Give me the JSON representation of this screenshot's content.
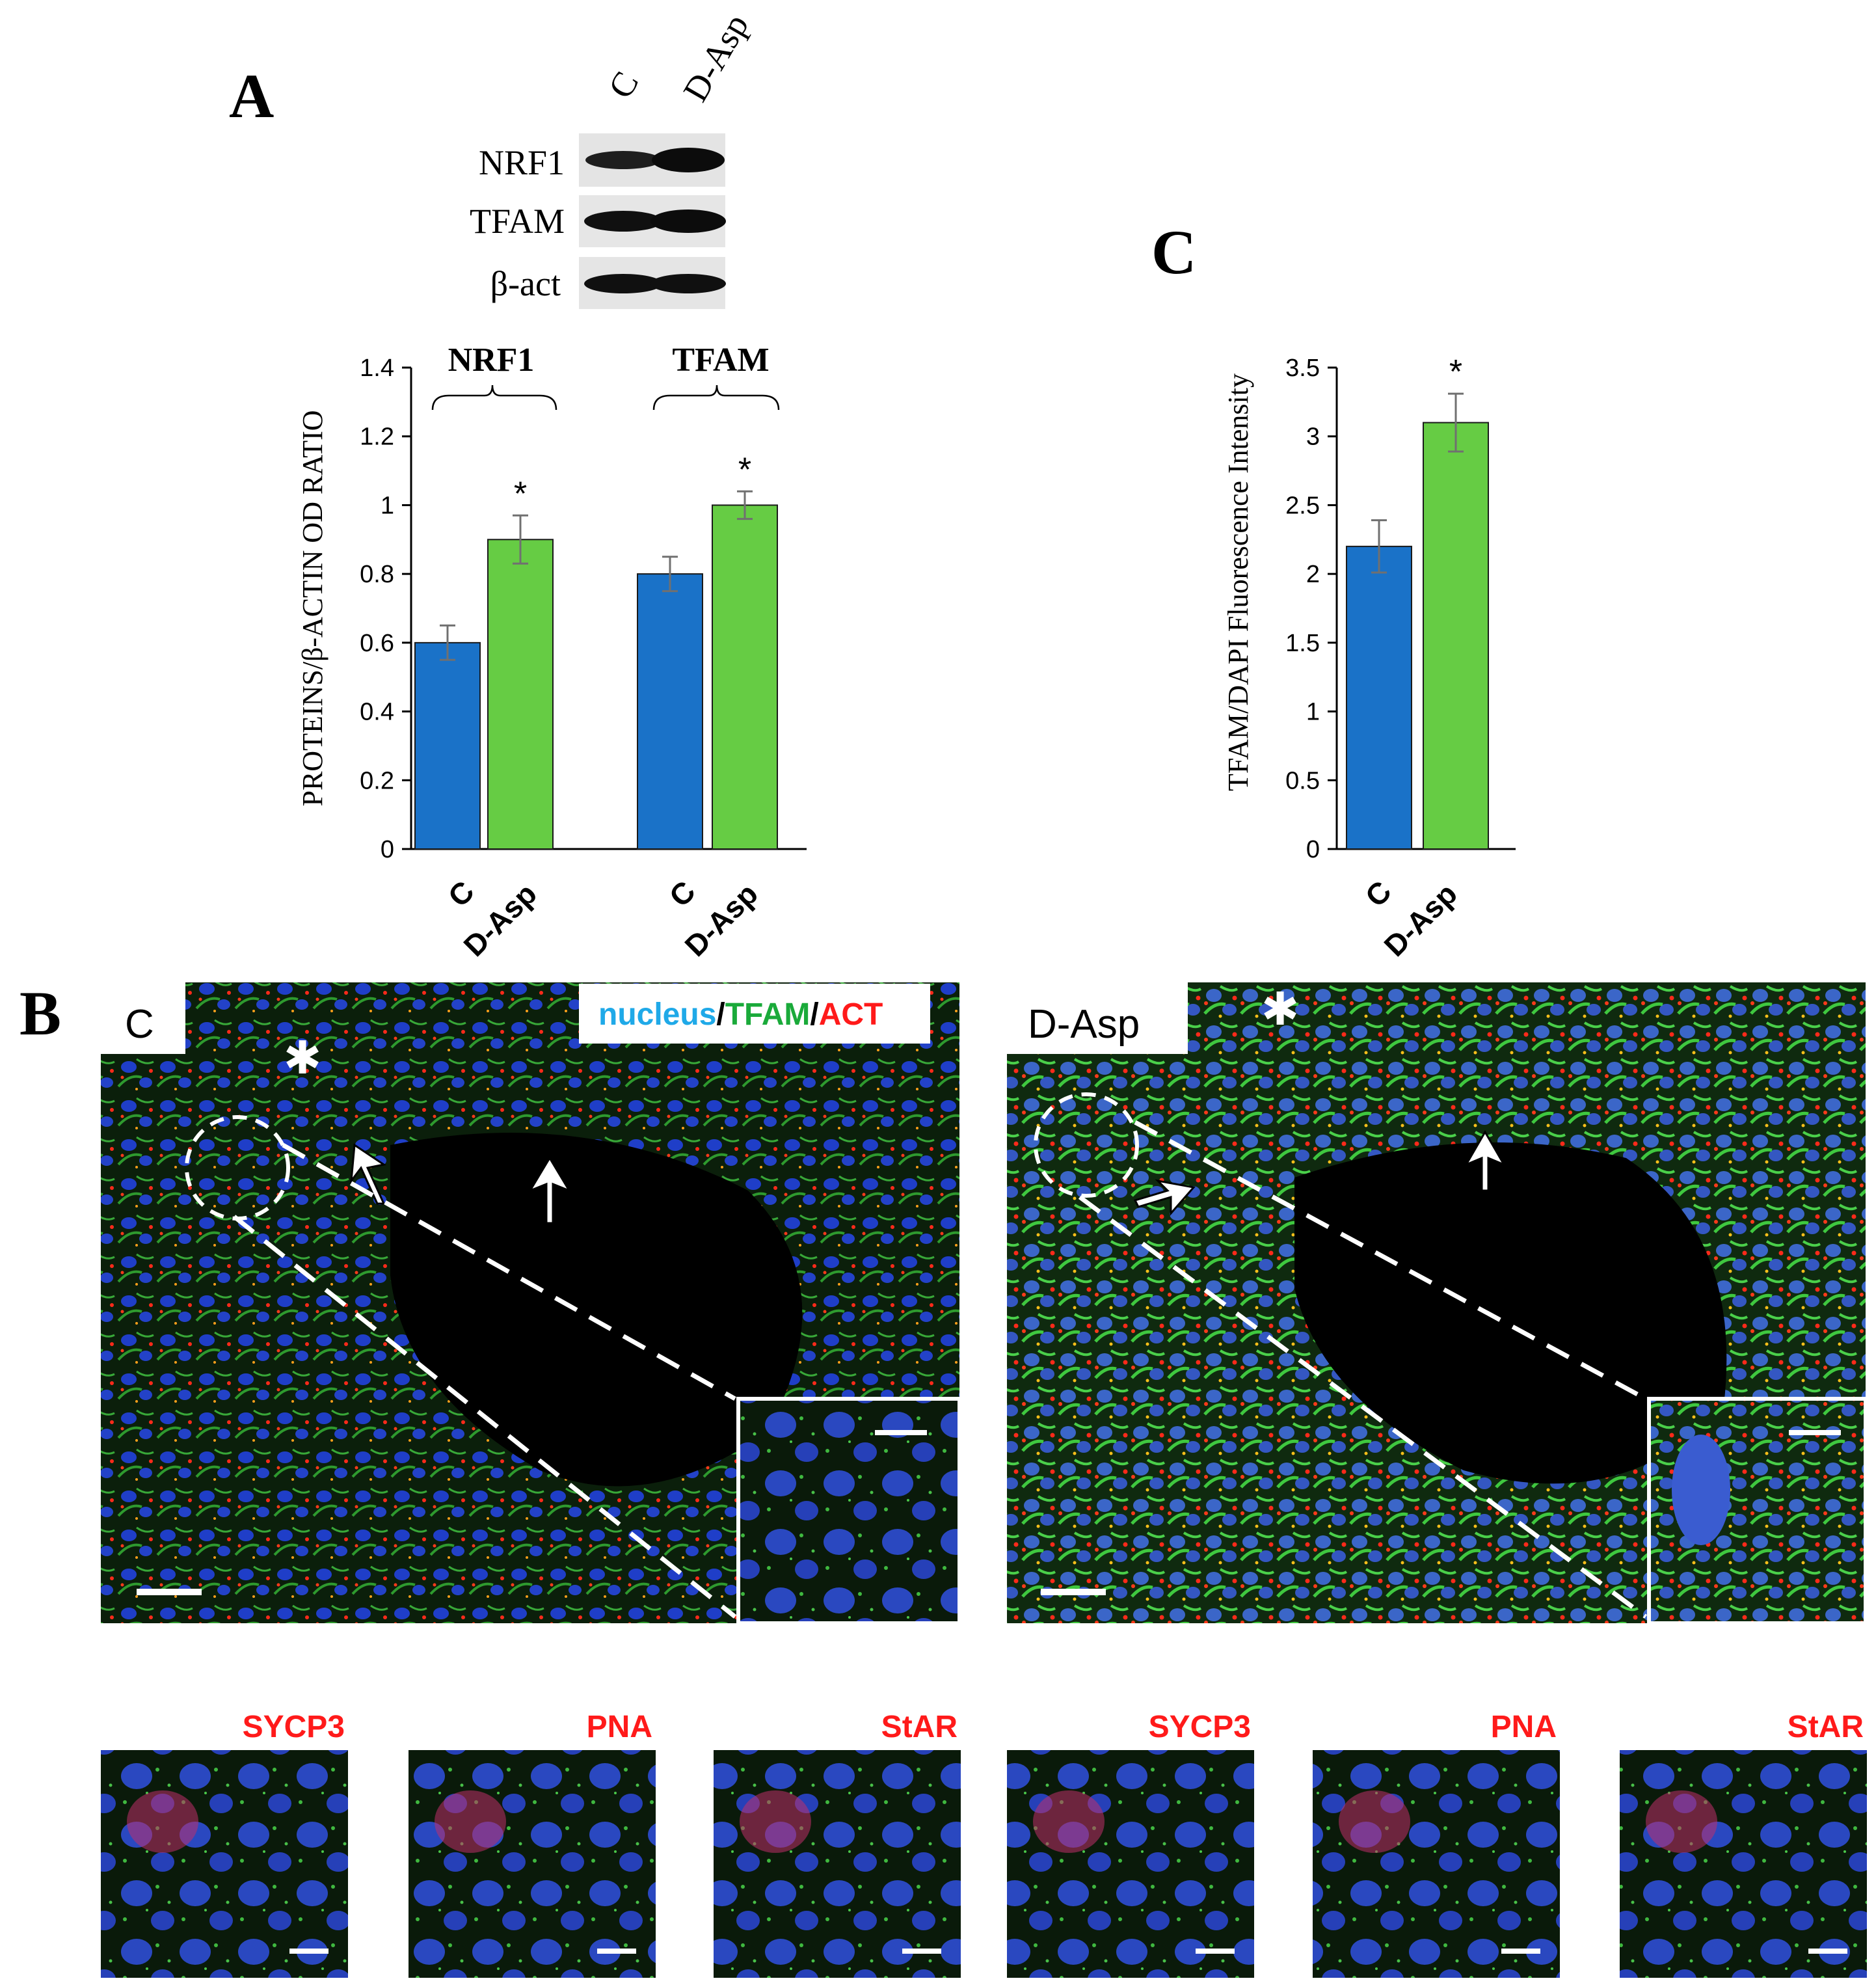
{
  "panels": {
    "a": {
      "letter": "A"
    },
    "b": {
      "letter": "B"
    },
    "c": {
      "letter": "C"
    }
  },
  "blot": {
    "lanes": [
      "C",
      "D-Asp"
    ],
    "rows": [
      "NRF1",
      "TFAM",
      "β-act"
    ]
  },
  "micrographs": {
    "legend": [
      {
        "text": "nucleus",
        "color": "#1fa9e8"
      },
      {
        "text": "/",
        "color": "#000000"
      },
      {
        "text": "TFAM",
        "color": "#1aaa3a"
      },
      {
        "text": "/",
        "color": "#000000"
      },
      {
        "text": "ACT",
        "color": "#ff1a1a"
      }
    ],
    "main_labels": [
      "C",
      "D-Asp"
    ],
    "small_labels": [
      "SYCP3",
      "PNA",
      "StAR",
      "SYCP3",
      "PNA",
      "StAR"
    ]
  },
  "colors": {
    "control": "#1a72c8",
    "treated": "#66cc44",
    "error_bar": "#707070"
  },
  "chart_data": [
    {
      "type": "bar",
      "ylabel": "PROTEINS/β-ACTIN OD RATIO",
      "ylim": [
        0,
        1.4
      ],
      "yticks": [
        "0",
        "0.2",
        "0.4",
        "0.6",
        "0.8",
        "1",
        "1.2",
        "1.4"
      ],
      "groups": [
        {
          "name": "NRF1",
          "categories": [
            "C",
            "D-Asp"
          ],
          "values": [
            0.6,
            0.9
          ],
          "errors": [
            0.05,
            0.07
          ],
          "significance": [
            "",
            "*"
          ]
        },
        {
          "name": "TFAM",
          "categories": [
            "C",
            "D-Asp"
          ],
          "values": [
            0.8,
            1.0
          ],
          "errors": [
            0.05,
            0.04
          ],
          "significance": [
            "",
            "*"
          ]
        }
      ],
      "grid": false
    },
    {
      "type": "bar",
      "ylabel": "TFAM/DAPI  Fluorescence Intensity",
      "ylim": [
        0,
        3.5
      ],
      "yticks": [
        "0",
        "0.5",
        "1",
        "1.5",
        "2",
        "2.5",
        "3",
        "3.5"
      ],
      "categories": [
        "C",
        "D-Asp"
      ],
      "values": [
        2.2,
        3.1
      ],
      "errors": [
        0.19,
        0.21
      ],
      "significance": [
        "",
        "*"
      ],
      "grid": false
    }
  ]
}
